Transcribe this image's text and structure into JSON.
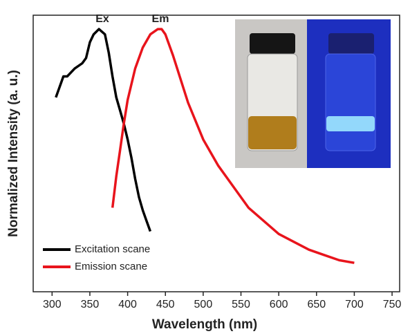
{
  "chart_data": {
    "type": "line",
    "xlabel": "Wavelength (nm)",
    "ylabel": "Normalized Intensity (a. u.)",
    "annotations": [
      "Ex",
      "Em"
    ],
    "xlim": [
      275,
      760
    ],
    "ylim": [
      0,
      1.053
    ],
    "xticks": [
      300,
      350,
      400,
      450,
      500,
      550,
      600,
      650,
      700,
      750
    ],
    "legend": "lower left",
    "series": [
      {
        "name": "Excitation scane",
        "color": "#000000",
        "x": [
          305,
          315,
          320,
          330,
          340,
          345,
          350,
          355,
          362,
          370,
          375,
          380,
          385,
          390,
          395,
          400,
          405,
          410,
          415,
          420,
          425,
          430
        ],
        "values": [
          0.74,
          0.82,
          0.82,
          0.85,
          0.87,
          0.89,
          0.95,
          0.98,
          1.0,
          0.98,
          0.91,
          0.82,
          0.74,
          0.69,
          0.64,
          0.58,
          0.51,
          0.43,
          0.36,
          0.31,
          0.27,
          0.23
        ]
      },
      {
        "name": "Emission scane",
        "color": "#e8141c",
        "x": [
          380,
          385,
          390,
          395,
          400,
          410,
          420,
          430,
          440,
          445,
          450,
          460,
          470,
          480,
          500,
          520,
          540,
          560,
          580,
          600,
          620,
          640,
          660,
          680,
          700
        ],
        "values": [
          0.32,
          0.44,
          0.54,
          0.64,
          0.73,
          0.85,
          0.93,
          0.98,
          1.0,
          1.0,
          0.98,
          0.9,
          0.81,
          0.72,
          0.58,
          0.48,
          0.4,
          0.32,
          0.27,
          0.22,
          0.19,
          0.16,
          0.14,
          0.12,
          0.11
        ]
      }
    ]
  }
}
